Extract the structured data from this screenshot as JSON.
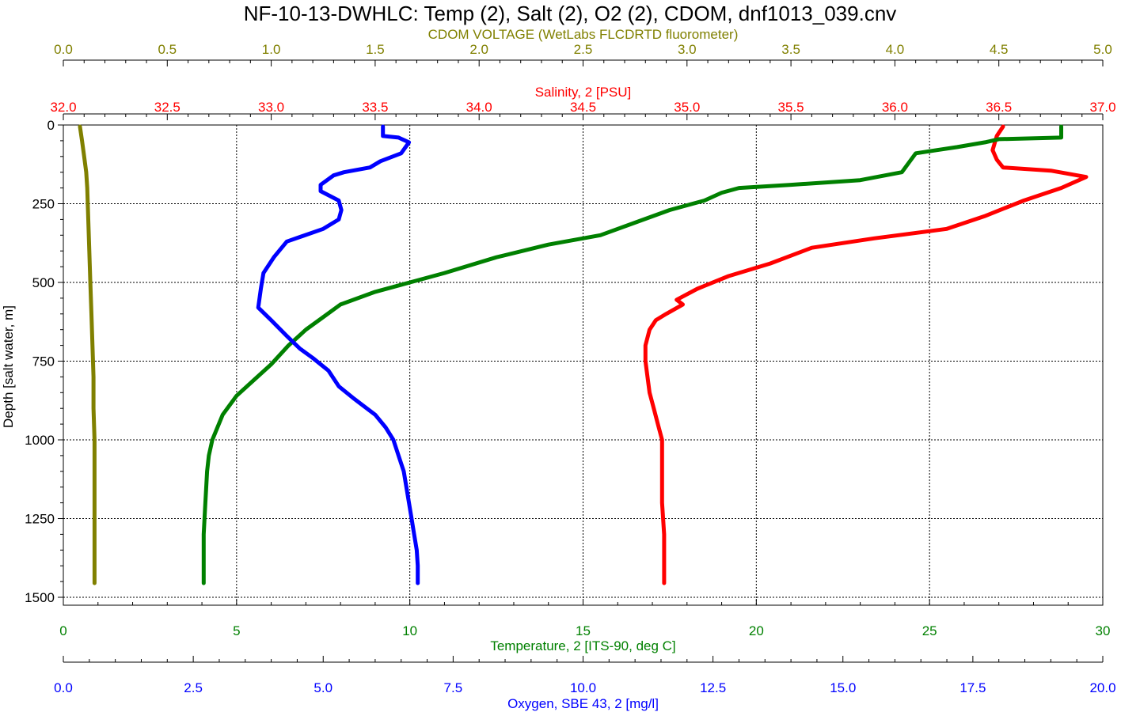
{
  "chart_data": {
    "type": "line",
    "title": "NF-10-13-DWHLC: Temp (2), Salt (2), O2 (2), CDOM, dnf1013_039.cnv",
    "grid": true,
    "y_axis": {
      "label": "Depth [salt water, m]",
      "range": [
        0,
        1500
      ],
      "inverted": true,
      "ticks": [
        "0",
        "250",
        "500",
        "750",
        "1000",
        "1250",
        "1500"
      ],
      "color": "#000000"
    },
    "x_axes": [
      {
        "id": "cdom",
        "label": "CDOM VOLTAGE (WetLabs FLCDRTD fluorometer)",
        "position": "top",
        "range": [
          0.0,
          5.0
        ],
        "ticks": [
          "0.0",
          "0.5",
          "1.0",
          "1.5",
          "2.0",
          "2.5",
          "3.0",
          "3.5",
          "4.0",
          "4.5",
          "5.0"
        ],
        "color": "#808000"
      },
      {
        "id": "salinity",
        "label": "Salinity, 2 [PSU]",
        "position": "top",
        "range": [
          32.0,
          37.0
        ],
        "ticks": [
          "32.0",
          "32.5",
          "33.0",
          "33.5",
          "34.0",
          "34.5",
          "35.0",
          "35.5",
          "36.0",
          "36.5",
          "37.0"
        ],
        "color": "#ff0000"
      },
      {
        "id": "temperature",
        "label": "Temperature, 2 [ITS-90, deg C]",
        "position": "bottom",
        "range": [
          0,
          30
        ],
        "ticks": [
          "0",
          "5",
          "10",
          "15",
          "20",
          "25",
          "30"
        ],
        "color": "#008000"
      },
      {
        "id": "oxygen",
        "label": "Oxygen, SBE 43, 2 [mg/l]",
        "position": "bottom",
        "range": [
          0.0,
          20.0
        ],
        "ticks": [
          "0.0",
          "2.5",
          "5.0",
          "7.5",
          "10.0",
          "12.5",
          "15.0",
          "17.5",
          "20.0"
        ],
        "color": "#0000ff"
      }
    ],
    "series": [
      {
        "axis": "cdom",
        "color": "#808000",
        "points": [
          [
            0.08,
            5
          ],
          [
            0.09,
            50
          ],
          [
            0.1,
            100
          ],
          [
            0.11,
            150
          ],
          [
            0.115,
            200
          ],
          [
            0.12,
            300
          ],
          [
            0.125,
            400
          ],
          [
            0.13,
            500
          ],
          [
            0.135,
            600
          ],
          [
            0.14,
            700
          ],
          [
            0.145,
            800
          ],
          [
            0.145,
            900
          ],
          [
            0.15,
            1000
          ],
          [
            0.15,
            1100
          ],
          [
            0.15,
            1200
          ],
          [
            0.15,
            1300
          ],
          [
            0.15,
            1400
          ],
          [
            0.15,
            1455
          ]
        ]
      },
      {
        "axis": "salinity",
        "color": "#ff0000",
        "points": [
          [
            36.52,
            5
          ],
          [
            36.49,
            35
          ],
          [
            36.47,
            80
          ],
          [
            36.49,
            110
          ],
          [
            36.52,
            135
          ],
          [
            36.75,
            145
          ],
          [
            36.92,
            165
          ],
          [
            36.8,
            200
          ],
          [
            36.62,
            240
          ],
          [
            36.43,
            290
          ],
          [
            36.25,
            330
          ],
          [
            35.9,
            360
          ],
          [
            35.6,
            390
          ],
          [
            35.4,
            440
          ],
          [
            35.2,
            480
          ],
          [
            35.05,
            520
          ],
          [
            34.95,
            555
          ],
          [
            34.98,
            570
          ],
          [
            34.9,
            600
          ],
          [
            34.85,
            620
          ],
          [
            34.82,
            650
          ],
          [
            34.8,
            700
          ],
          [
            34.8,
            750
          ],
          [
            34.81,
            800
          ],
          [
            34.82,
            850
          ],
          [
            34.84,
            900
          ],
          [
            34.86,
            950
          ],
          [
            34.88,
            1000
          ],
          [
            34.88,
            1100
          ],
          [
            34.88,
            1200
          ],
          [
            34.89,
            1300
          ],
          [
            34.89,
            1400
          ],
          [
            34.89,
            1455
          ]
        ]
      },
      {
        "axis": "temperature",
        "color": "#008000",
        "points": [
          [
            28.8,
            5
          ],
          [
            28.8,
            40
          ],
          [
            27.0,
            45
          ],
          [
            26.6,
            55
          ],
          [
            25.8,
            70
          ],
          [
            25.2,
            80
          ],
          [
            24.6,
            90
          ],
          [
            24.4,
            120
          ],
          [
            24.2,
            150
          ],
          [
            23.0,
            175
          ],
          [
            21.0,
            190
          ],
          [
            19.5,
            200
          ],
          [
            19.0,
            215
          ],
          [
            18.5,
            240
          ],
          [
            17.5,
            270
          ],
          [
            16.5,
            310
          ],
          [
            15.5,
            350
          ],
          [
            14.0,
            380
          ],
          [
            12.5,
            420
          ],
          [
            11.0,
            470
          ],
          [
            10.0,
            500
          ],
          [
            9.0,
            530
          ],
          [
            8.0,
            570
          ],
          [
            7.5,
            610
          ],
          [
            7.0,
            650
          ],
          [
            6.5,
            700
          ],
          [
            6.0,
            760
          ],
          [
            5.5,
            810
          ],
          [
            5.0,
            860
          ],
          [
            4.6,
            920
          ],
          [
            4.3,
            1000
          ],
          [
            4.2,
            1050
          ],
          [
            4.15,
            1100
          ],
          [
            4.1,
            1200
          ],
          [
            4.05,
            1300
          ],
          [
            4.05,
            1400
          ],
          [
            4.05,
            1455
          ]
        ]
      },
      {
        "axis": "oxygen",
        "color": "#0000ff",
        "points": [
          [
            6.15,
            5
          ],
          [
            6.15,
            35
          ],
          [
            6.45,
            40
          ],
          [
            6.65,
            55
          ],
          [
            6.5,
            90
          ],
          [
            6.1,
            115
          ],
          [
            5.9,
            135
          ],
          [
            5.4,
            150
          ],
          [
            5.2,
            160
          ],
          [
            4.95,
            190
          ],
          [
            4.95,
            210
          ],
          [
            5.3,
            240
          ],
          [
            5.35,
            270
          ],
          [
            5.3,
            300
          ],
          [
            5.0,
            330
          ],
          [
            4.3,
            370
          ],
          [
            4.05,
            420
          ],
          [
            3.85,
            470
          ],
          [
            3.8,
            520
          ],
          [
            3.75,
            580
          ],
          [
            4.0,
            620
          ],
          [
            4.3,
            670
          ],
          [
            4.55,
            710
          ],
          [
            4.8,
            740
          ],
          [
            5.1,
            780
          ],
          [
            5.3,
            830
          ],
          [
            5.6,
            870
          ],
          [
            6.0,
            920
          ],
          [
            6.2,
            960
          ],
          [
            6.35,
            1000
          ],
          [
            6.45,
            1050
          ],
          [
            6.55,
            1100
          ],
          [
            6.6,
            1150
          ],
          [
            6.65,
            1200
          ],
          [
            6.7,
            1250
          ],
          [
            6.75,
            1300
          ],
          [
            6.8,
            1350
          ],
          [
            6.82,
            1400
          ],
          [
            6.82,
            1455
          ]
        ]
      }
    ]
  }
}
